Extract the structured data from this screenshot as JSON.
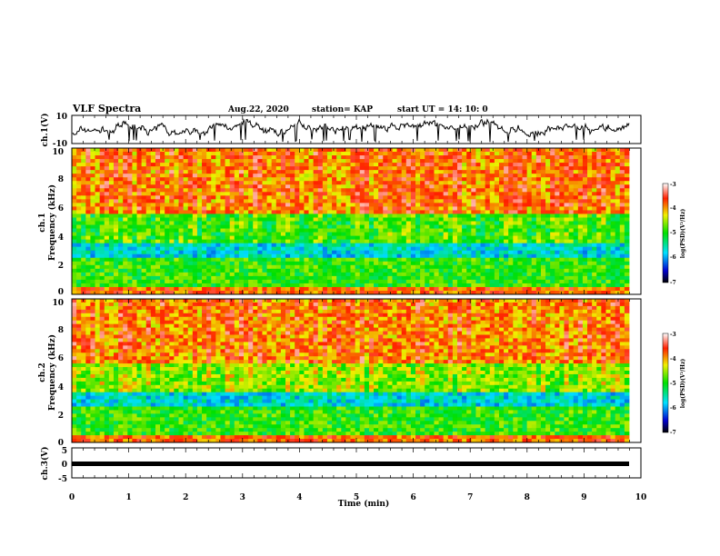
{
  "header": {
    "title": "VLF Spectra",
    "date": "Aug.22, 2020",
    "station": "station= KAP",
    "start": "start  UT  =   14: 10: 0"
  },
  "chart_data": [
    {
      "type": "line",
      "ylabel": "ch.1(V)",
      "ylim": [
        -10,
        10
      ],
      "yticks": [
        "10",
        "-10"
      ],
      "xlim": [
        0,
        10
      ],
      "series_color": "#000000"
    },
    {
      "type": "heatmap",
      "ylabel_top": "ch.1",
      "ylabel": "Frequency  (kHz)",
      "ylim": [
        0,
        10
      ],
      "yticks": [
        "0",
        "2",
        "4",
        "6",
        "8",
        "10"
      ],
      "xlim": [
        0,
        9.8
      ],
      "colorbar": {
        "label": "log(PSD)(V²/Hz)",
        "ticks": [
          "-3",
          "-4",
          "-5",
          "-6",
          "-7"
        ],
        "range": [
          -7,
          -3
        ]
      }
    },
    {
      "type": "heatmap",
      "ylabel_top": "ch.2",
      "ylabel": "Frequency  (kHz)",
      "ylim": [
        0,
        10
      ],
      "yticks": [
        "0",
        "2",
        "4",
        "6",
        "8",
        "10"
      ],
      "xlim": [
        0,
        9.8
      ],
      "colorbar": {
        "label": "log(PSD)(V²/Hz)",
        "ticks": [
          "-3",
          "-4",
          "-5",
          "-6",
          "-7"
        ],
        "range": [
          -7,
          -3
        ]
      }
    },
    {
      "type": "line",
      "ylabel": "ch.3(V)",
      "ylim": [
        -5,
        5
      ],
      "yticks": [
        "5",
        "0",
        "-5"
      ],
      "xlim": [
        0,
        10
      ],
      "xlabel": "Time  (min)",
      "xticks": [
        "0",
        "1",
        "2",
        "3",
        "4",
        "5",
        "6",
        "7",
        "8",
        "9",
        "10"
      ],
      "series_color": "#000000"
    }
  ]
}
